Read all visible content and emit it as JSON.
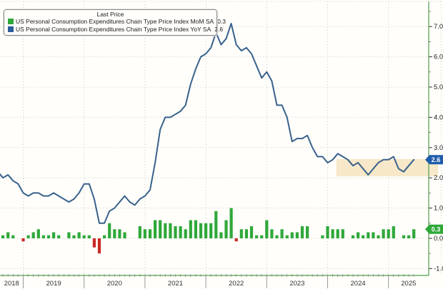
{
  "legend": {
    "title": "Last Price",
    "items": [
      {
        "label": "US Personal Consumption Expenditures Chain Type Price Index MoM SA",
        "value": "0.3",
        "swatch": "#2fa83a"
      },
      {
        "label": "US Personal Consumption Expenditures Chain Type Price Index YoY SA",
        "value": "2.6",
        "swatch": "#2b5c9b"
      }
    ]
  },
  "chart_data": {
    "type": "mixed",
    "title": "",
    "x": [
      "2018-08",
      "2018-09",
      "2018-10",
      "2018-11",
      "2018-12",
      "2019-01",
      "2019-02",
      "2019-03",
      "2019-04",
      "2019-05",
      "2019-06",
      "2019-07",
      "2019-08",
      "2019-09",
      "2019-10",
      "2019-11",
      "2019-12",
      "2020-01",
      "2020-02",
      "2020-03",
      "2020-04",
      "2020-05",
      "2020-06",
      "2020-07",
      "2020-08",
      "2020-09",
      "2020-10",
      "2020-11",
      "2020-12",
      "2021-01",
      "2021-02",
      "2021-03",
      "2021-04",
      "2021-05",
      "2021-06",
      "2021-07",
      "2021-08",
      "2021-09",
      "2021-10",
      "2021-11",
      "2021-12",
      "2022-01",
      "2022-02",
      "2022-03",
      "2022-04",
      "2022-05",
      "2022-06",
      "2022-07",
      "2022-08",
      "2022-09",
      "2022-10",
      "2022-11",
      "2022-12",
      "2023-01",
      "2023-02",
      "2023-03",
      "2023-04",
      "2023-05",
      "2023-06",
      "2023-07",
      "2023-08",
      "2023-09",
      "2023-10",
      "2023-11",
      "2023-12",
      "2024-01",
      "2024-02",
      "2024-03",
      "2024-04",
      "2024-05",
      "2024-06",
      "2024-07",
      "2024-08",
      "2024-09",
      "2024-10",
      "2024-11",
      "2024-12",
      "2025-01",
      "2025-02",
      "2025-03",
      "2025-04",
      "2025-05",
      "2025-06"
    ],
    "series": [
      {
        "name": "US Personal Consumption Expenditures Chain Type Price Index MoM SA",
        "type": "bar",
        "color": "#2fa83a",
        "negative_color": "#c92b26",
        "last": 0.3,
        "values": [
          0.1,
          0.1,
          0.2,
          0.1,
          0.0,
          -0.1,
          0.1,
          0.2,
          0.3,
          0.1,
          0.1,
          0.2,
          0.1,
          0.0,
          0.2,
          0.1,
          0.2,
          0.1,
          0.1,
          -0.3,
          -0.5,
          0.1,
          0.5,
          0.3,
          0.3,
          0.2,
          0.0,
          0.0,
          0.4,
          0.3,
          0.3,
          0.6,
          0.6,
          0.5,
          0.5,
          0.4,
          0.4,
          0.3,
          0.6,
          0.6,
          0.5,
          0.5,
          0.5,
          0.9,
          0.2,
          0.6,
          1.0,
          -0.1,
          0.3,
          0.3,
          0.4,
          0.1,
          0.1,
          0.6,
          0.3,
          0.1,
          0.3,
          0.1,
          0.2,
          0.2,
          0.4,
          0.4,
          0.0,
          0.0,
          0.1,
          0.4,
          0.3,
          0.3,
          0.3,
          0.0,
          0.1,
          0.2,
          0.1,
          0.2,
          0.2,
          0.1,
          0.3,
          0.3,
          0.4,
          0.0,
          0.1,
          0.1,
          0.3
        ]
      },
      {
        "name": "US Personal Consumption Expenditures Chain Type Price Index YoY SA",
        "type": "line",
        "color": "#38618c",
        "last": 2.6,
        "values": [
          2.2,
          2.0,
          2.1,
          1.9,
          1.8,
          1.5,
          1.4,
          1.5,
          1.5,
          1.4,
          1.4,
          1.5,
          1.4,
          1.3,
          1.2,
          1.3,
          1.5,
          1.8,
          1.8,
          1.3,
          0.5,
          0.5,
          0.9,
          1.0,
          1.2,
          1.4,
          1.2,
          1.1,
          1.3,
          1.4,
          1.6,
          2.5,
          3.6,
          4.0,
          4.0,
          4.1,
          4.2,
          4.4,
          5.1,
          5.6,
          6.0,
          6.1,
          6.3,
          6.8,
          6.4,
          6.6,
          7.1,
          6.4,
          6.2,
          6.3,
          6.1,
          5.7,
          5.3,
          5.5,
          5.2,
          4.4,
          4.4,
          4.0,
          3.2,
          3.3,
          3.3,
          3.4,
          3.0,
          2.7,
          2.7,
          2.5,
          2.6,
          2.8,
          2.7,
          2.6,
          2.4,
          2.5,
          2.3,
          2.1,
          2.3,
          2.5,
          2.6,
          2.6,
          2.7,
          2.3,
          2.2,
          2.4,
          2.6
        ]
      }
    ],
    "x_axis": {
      "tick_labels": [
        "2018",
        "2019",
        "2020",
        "2021",
        "2022",
        "2023",
        "2024",
        "2025"
      ]
    },
    "y_axis": {
      "side": "right",
      "ticks": [
        -1,
        0,
        1,
        2,
        3,
        4,
        5,
        6,
        7
      ],
      "tick_labels": [
        "-1.0",
        "0.0",
        "1.0",
        "2.0",
        "3.0",
        "4.0",
        "5.0",
        "6.0",
        "7.0"
      ],
      "range": [
        -1.23,
        7.83
      ]
    },
    "badges": [
      {
        "text": "2.6",
        "value": 2.6,
        "color": "#1f5cab",
        "series": "yoy"
      },
      {
        "text": "0.3",
        "value": 0.3,
        "color": "#2fa83a",
        "series": "mom"
      }
    ],
    "highlight_box": {
      "x_from": "2024-03",
      "y_from": 2.05,
      "y_to": 2.62,
      "color": "#f6e8c8"
    },
    "grid": {
      "horizontal": "integer gridlines",
      "vertical": "year boundaries",
      "style": "dotted",
      "color": "#c9c9c5"
    },
    "axis_color": "#4f9e4f",
    "legend_position": "top-left"
  }
}
